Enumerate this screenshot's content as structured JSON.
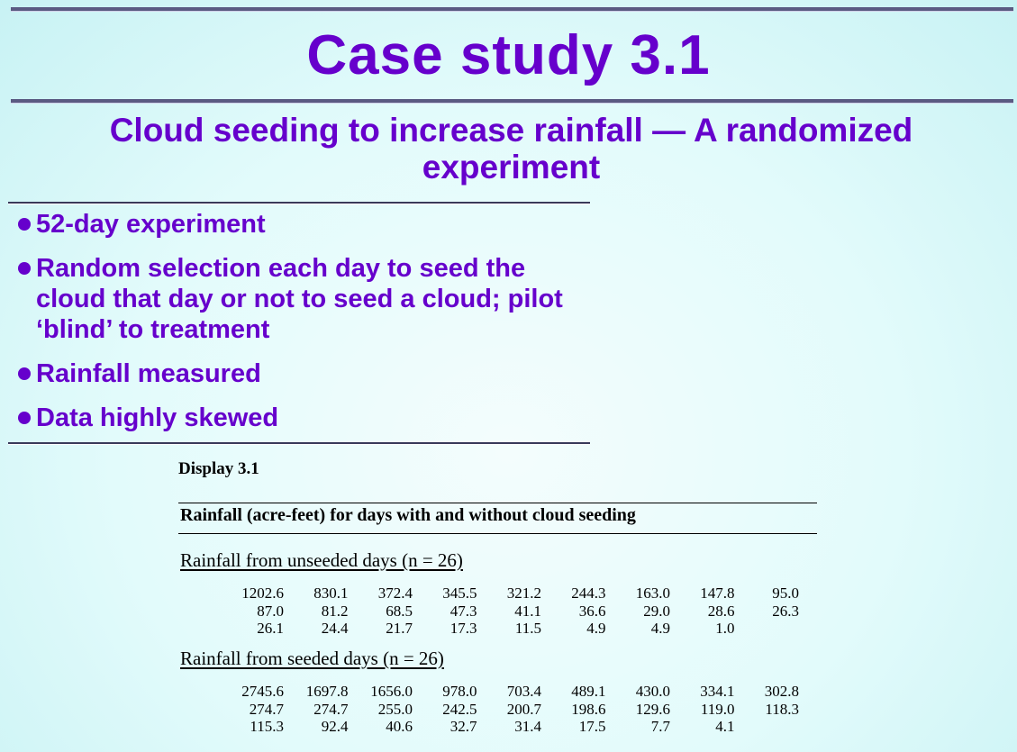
{
  "title": "Case study 3.1",
  "subtitle": "Cloud seeding to increase rainfall — A randomized experiment",
  "bullets": [
    "52-day experiment",
    "Random selection each day to seed the cloud that day or not to seed a cloud; pilot ‘blind’ to treatment",
    "Rainfall measured",
    "Data highly skewed"
  ],
  "display": {
    "label": "Display 3.1",
    "caption": "Rainfall (acre-feet) for days with and without cloud seeding",
    "groups": [
      {
        "title": "Rainfall from unseeded days (n = 26)",
        "rows": [
          [
            "1202.6",
            "830.1",
            "372.4",
            "345.5",
            "321.2",
            "244.3",
            "163.0",
            "147.8",
            "95.0"
          ],
          [
            "87.0",
            "81.2",
            "68.5",
            "47.3",
            "41.1",
            "36.6",
            "29.0",
            "28.6",
            "26.3"
          ],
          [
            "26.1",
            "24.4",
            "21.7",
            "17.3",
            "11.5",
            "4.9",
            "4.9",
            "1.0",
            ""
          ]
        ]
      },
      {
        "title": "Rainfall from seeded days (n = 26)",
        "rows": [
          [
            "2745.6",
            "1697.8",
            "1656.0",
            "978.0",
            "703.4",
            "489.1",
            "430.0",
            "334.1",
            "302.8"
          ],
          [
            "274.7",
            "274.7",
            "255.0",
            "242.5",
            "200.7",
            "198.6",
            "129.6",
            "119.0",
            "118.3"
          ],
          [
            "115.3",
            "92.4",
            "40.6",
            "32.7",
            "31.4",
            "17.5",
            "7.7",
            "4.1",
            ""
          ]
        ]
      }
    ]
  },
  "colors": {
    "accent": "#6600cc",
    "rule": "#5a5a82"
  }
}
